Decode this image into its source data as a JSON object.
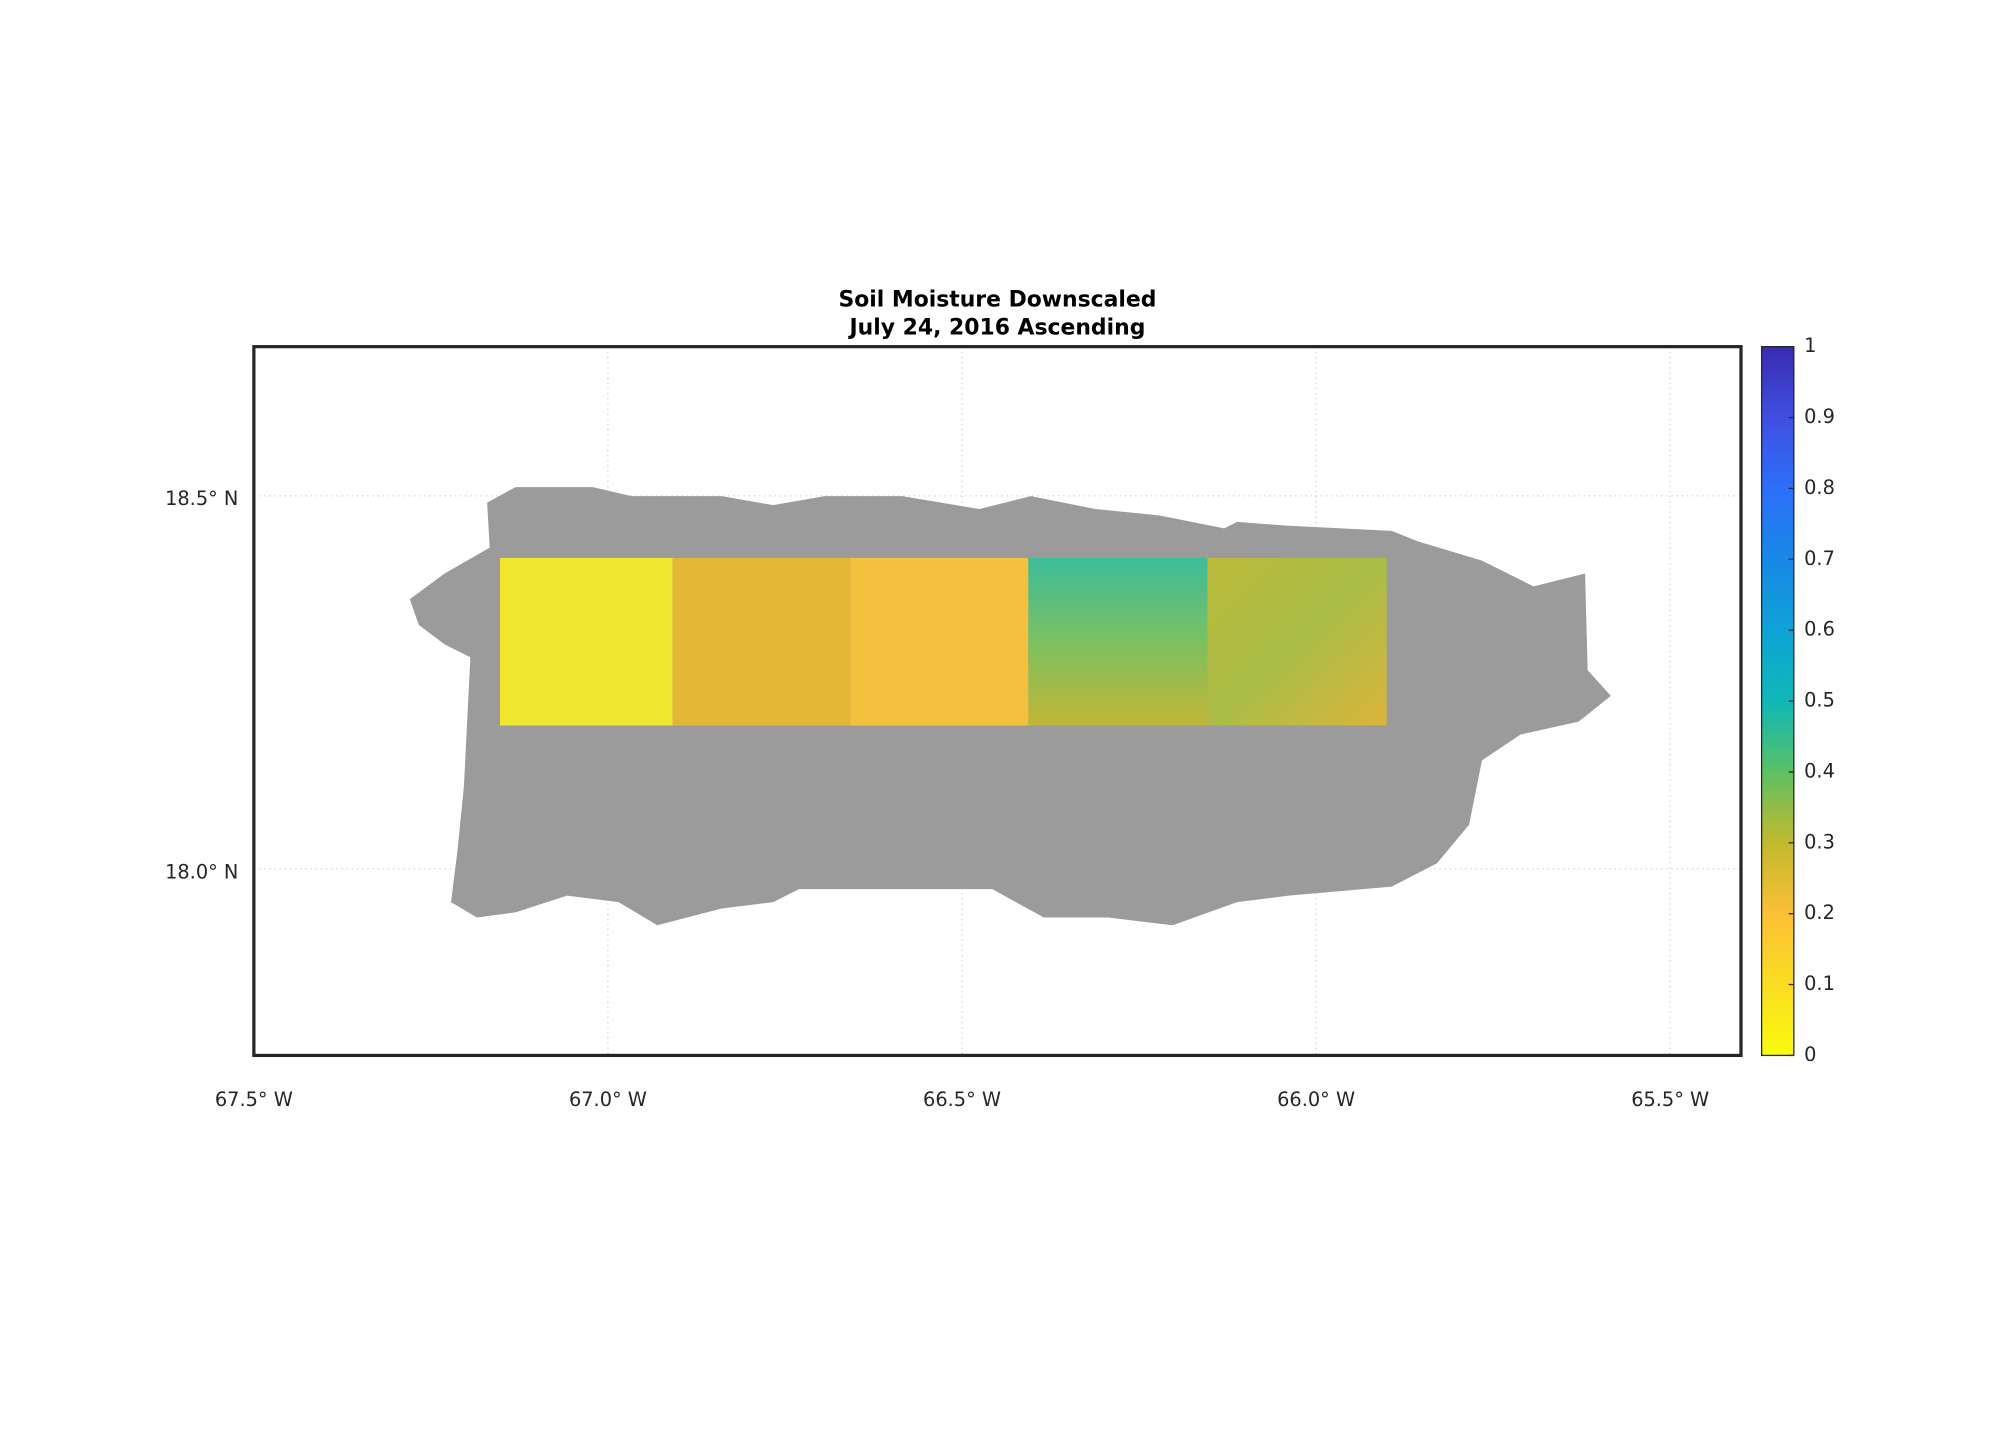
{
  "map": {
    "title": "Soil Moisture Downscaled",
    "subtitle": "July 24, 2016 Ascending",
    "xlim": [
      -67.5,
      -65.4
    ],
    "xticks": [
      {
        "value": -67.5,
        "label": "67.5° W"
      },
      {
        "value": -67.0,
        "label": "67.0° W"
      },
      {
        "value": -66.5,
        "label": "66.5° W"
      },
      {
        "value": -66.0,
        "label": "66.0° W"
      },
      {
        "value": -65.5,
        "label": "65.5° W"
      }
    ],
    "ylim": [
      17.75,
      18.7
    ],
    "yticks": [
      {
        "value": 18.0,
        "label": "18.0° N"
      },
      {
        "value": 18.5,
        "label": "18.5° N"
      }
    ],
    "grid": true,
    "colorbar": {
      "lim": [
        0,
        1
      ],
      "ticks": [
        0,
        0.1,
        0.2,
        0.3,
        0.4,
        0.5,
        0.6,
        0.7,
        0.8,
        0.9,
        1
      ]
    }
  }
}
